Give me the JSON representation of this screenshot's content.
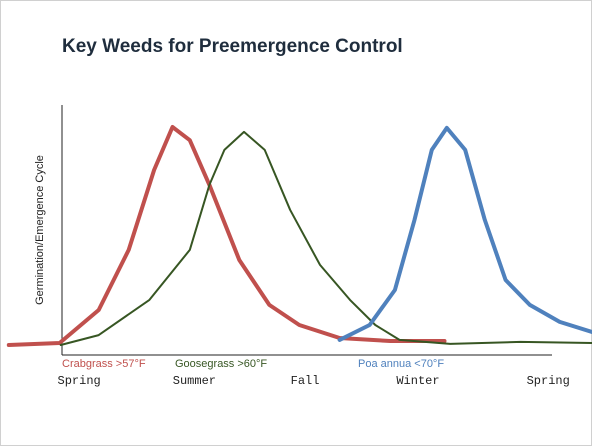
{
  "chart_data": {
    "type": "line",
    "title": "Key Weeds for Preemergence Control",
    "ylabel": "Germination/Emergence Cycle",
    "xlim": [
      -0.6,
      4.45
    ],
    "ylim": [
      0,
      109
    ],
    "xticks": [
      {
        "value": 0,
        "label": "Spring"
      },
      {
        "value": 1,
        "label": "Summer"
      },
      {
        "value": 1.96,
        "label": "Fall"
      },
      {
        "value": 2.94,
        "label": "Winter"
      },
      {
        "value": 4.07,
        "label": "Spring"
      }
    ],
    "series": [
      {
        "name": "Crabgrass >57°F",
        "color": "#c0504d",
        "width": 4,
        "x": [
          -0.61,
          -0.17,
          0.17,
          0.43,
          0.65,
          0.81,
          0.96,
          1.13,
          1.39,
          1.65,
          1.91,
          2.26,
          2.7,
          3.17
        ],
        "values": [
          0,
          0.9,
          15.9,
          43.2,
          79.5,
          99,
          93,
          72.7,
          38.6,
          18.2,
          9.1,
          3.2,
          1.8,
          1.8
        ]
      },
      {
        "name": "Goosegrass >60°F",
        "color": "#375623",
        "width": 2,
        "x": [
          -0.16,
          0.17,
          0.61,
          0.96,
          1.13,
          1.26,
          1.43,
          1.61,
          1.83,
          2.09,
          2.35,
          2.57,
          2.78,
          3.22,
          3.83,
          4.45
        ],
        "values": [
          0,
          4.5,
          20.5,
          43.2,
          72.7,
          88.6,
          96.8,
          88.6,
          61.4,
          36.4,
          20.5,
          9.1,
          2.3,
          0.5,
          1.4,
          0.9
        ]
      },
      {
        "name": "Poa annua <70°F",
        "color": "#4f81bd",
        "width": 4,
        "x": [
          2.26,
          2.52,
          2.74,
          2.91,
          3.06,
          3.19,
          3.35,
          3.52,
          3.7,
          3.91,
          4.17,
          4.45
        ],
        "values": [
          2.3,
          9.1,
          25,
          56.8,
          88.6,
          98.6,
          88.6,
          56.8,
          29.5,
          18.2,
          10.5,
          5.9
        ]
      }
    ]
  }
}
